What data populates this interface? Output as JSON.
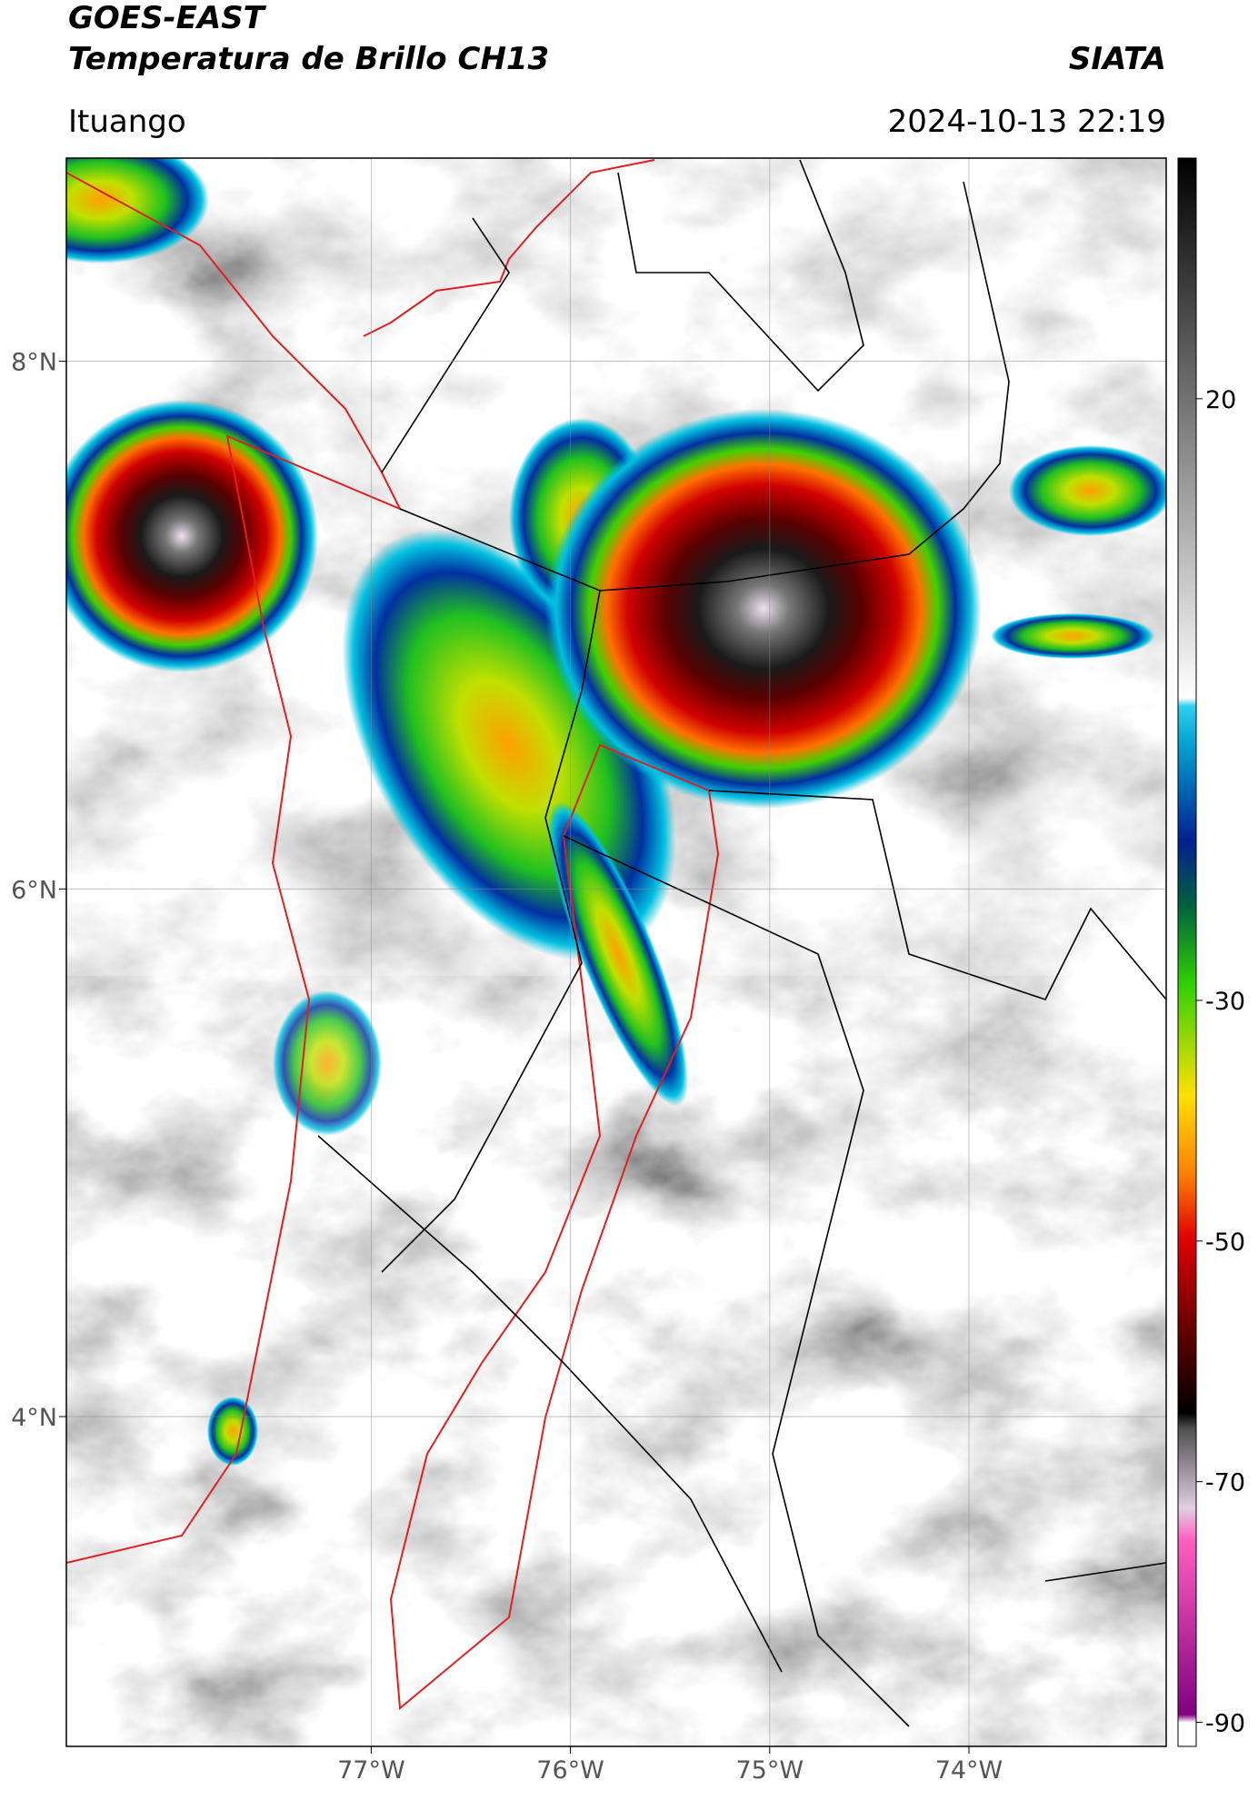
{
  "header": {
    "title": "GOES-EAST",
    "subtitle": "Temperatura de Brillo CH13",
    "source": "SIATA",
    "location": "Ituango",
    "datetime": "2024-10-13 22:19"
  },
  "map": {
    "xlim": [
      -78.53,
      -73.01
    ],
    "ylim": [
      2.75,
      8.77
    ],
    "xticks": [
      {
        "value": -77,
        "label": "77°W"
      },
      {
        "value": -76,
        "label": "76°W"
      },
      {
        "value": -75,
        "label": "75°W"
      },
      {
        "value": -74,
        "label": "74°W"
      }
    ],
    "yticks": [
      {
        "value": 8,
        "label": "8°N"
      },
      {
        "value": 6,
        "label": "6°N"
      },
      {
        "value": 4,
        "label": "4°N"
      }
    ],
    "grid": true
  },
  "colorbar": {
    "clim": [
      -92,
      40
    ],
    "ticks": [
      20,
      -30,
      -50,
      -70,
      -90
    ]
  }
}
